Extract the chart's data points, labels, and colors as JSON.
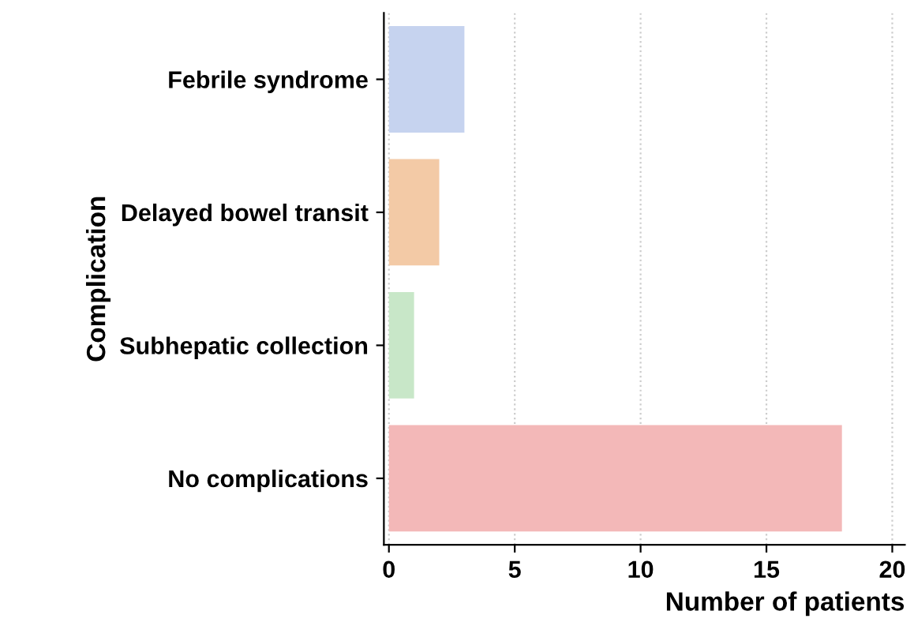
{
  "chart_data": {
    "type": "bar",
    "orientation": "horizontal",
    "xlabel": "Number of patients",
    "ylabel": "Complication",
    "categories": [
      "Febrile syndrome",
      "Delayed bowel transit",
      "Subhepatic collection",
      "No complications"
    ],
    "values": [
      3,
      2,
      1,
      18
    ],
    "colors": [
      "#c6d3ef",
      "#f3caa6",
      "#c8e7c8",
      "#f3b8b8"
    ],
    "xlim": [
      -0.2,
      20.5
    ],
    "xticks": [
      0,
      5,
      10,
      15,
      20
    ],
    "grid": "x"
  }
}
